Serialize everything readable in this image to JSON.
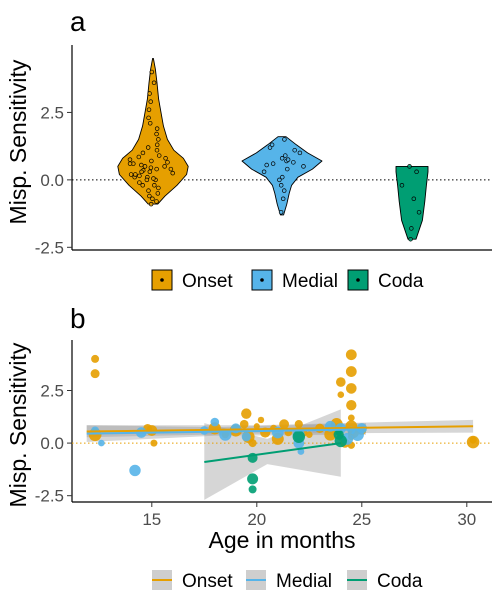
{
  "chart_data": [
    {
      "panel_label": "a",
      "type": "violin",
      "ylabel": "Misp. Sensitivity",
      "ylim": [
        -2.6,
        5.0
      ],
      "yticks": [
        "-2.5",
        "0.0",
        "2.5"
      ],
      "yticks_values": [
        -2.5,
        0.0,
        2.5
      ],
      "reference_line": 0,
      "categories": [
        "Onset",
        "Medial",
        "Coda"
      ],
      "colors": [
        "#E69F00",
        "#56B4E9",
        "#009E73"
      ],
      "series": [
        {
          "name": "Onset",
          "violin_profile": [
            [
              -0.9,
              0.06
            ],
            [
              -0.6,
              0.15
            ],
            [
              -0.2,
              0.3
            ],
            [
              0.2,
              0.42
            ],
            [
              0.5,
              0.44
            ],
            [
              0.8,
              0.38
            ],
            [
              1.1,
              0.26
            ],
            [
              1.5,
              0.18
            ],
            [
              2.0,
              0.13
            ],
            [
              2.5,
              0.1
            ],
            [
              3.0,
              0.07
            ],
            [
              3.6,
              0.05
            ],
            [
              4.1,
              0.03
            ],
            [
              4.5,
              0.005
            ]
          ],
          "points": [
            -0.9,
            -0.8,
            -0.7,
            -0.6,
            -0.5,
            -0.4,
            -0.3,
            -0.2,
            -0.1,
            0.0,
            0.05,
            0.1,
            0.15,
            0.2,
            0.25,
            0.3,
            0.35,
            0.4,
            0.45,
            0.5,
            0.55,
            0.6,
            0.65,
            0.7,
            0.75,
            0.8,
            0.85,
            0.9,
            1.0,
            1.1,
            1.2,
            1.3,
            1.5,
            1.7,
            1.9,
            2.1,
            2.3,
            2.6,
            2.9,
            3.2,
            3.6,
            4.0,
            0.1,
            0.3,
            0.5,
            0.2,
            0.4,
            0.6,
            0.0,
            -0.2
          ]
        },
        {
          "name": "Medial",
          "violin_profile": [
            [
              -1.3,
              0.02
            ],
            [
              -0.9,
              0.06
            ],
            [
              -0.5,
              0.09
            ],
            [
              -0.2,
              0.12
            ],
            [
              0.1,
              0.2
            ],
            [
              0.4,
              0.38
            ],
            [
              0.7,
              0.5
            ],
            [
              1.0,
              0.32
            ],
            [
              1.3,
              0.18
            ],
            [
              1.6,
              0.05
            ]
          ],
          "points": [
            -1.2,
            -0.7,
            -0.4,
            -0.2,
            0.0,
            0.1,
            0.3,
            0.4,
            0.5,
            0.6,
            0.7,
            0.75,
            0.8,
            0.9,
            1.0,
            1.1,
            1.2,
            1.3,
            1.5,
            0.55,
            0.65
          ]
        },
        {
          "name": "Coda",
          "violin_profile": [
            [
              -2.2,
              0.05
            ],
            [
              -1.5,
              0.13
            ],
            [
              -0.8,
              0.16
            ],
            [
              -0.2,
              0.18
            ],
            [
              0.3,
              0.2
            ],
            [
              0.5,
              0.2
            ]
          ],
          "points": [
            -2.2,
            -1.8,
            -1.2,
            -0.7,
            -0.2,
            0.3,
            0.5
          ]
        }
      ],
      "legend": {
        "position": "bottom",
        "entries": [
          "Onset",
          "Medial",
          "Coda"
        ]
      }
    },
    {
      "panel_label": "b",
      "type": "scatter",
      "xlabel": "Age in months",
      "ylabel": "Misp. Sensitivity",
      "xlim": [
        11.2,
        31.2
      ],
      "ylim": [
        -2.8,
        4.9
      ],
      "xticks": [
        "15",
        "20",
        "25",
        "30"
      ],
      "xticks_values": [
        15,
        20,
        25,
        30
      ],
      "yticks": [
        "-2.5",
        "0.0",
        "2.5"
      ],
      "yticks_values": [
        -2.5,
        0.0,
        2.5
      ],
      "reference_line": 0,
      "series": [
        {
          "name": "Onset",
          "color": "#E69F00",
          "points": [
            [
              12.3,
              4.0
            ],
            [
              12.3,
              3.3
            ],
            [
              12.3,
              0.4
            ],
            [
              14.8,
              0.7
            ],
            [
              15.0,
              0.6
            ],
            [
              15.1,
              0.0
            ],
            [
              18.0,
              0.7
            ],
            [
              18.5,
              0.4
            ],
            [
              19.0,
              0.6
            ],
            [
              19.4,
              0.9
            ],
            [
              19.5,
              1.4
            ],
            [
              19.6,
              0.3
            ],
            [
              19.8,
              0.0
            ],
            [
              20.0,
              0.8
            ],
            [
              20.2,
              1.1
            ],
            [
              20.4,
              0.5
            ],
            [
              20.8,
              0.7
            ],
            [
              21.0,
              0.2
            ],
            [
              21.3,
              0.9
            ],
            [
              21.5,
              0.5
            ],
            [
              22.0,
              0.9
            ],
            [
              22.2,
              0.5
            ],
            [
              22.5,
              0.4
            ],
            [
              23.0,
              0.7
            ],
            [
              23.5,
              0.4
            ],
            [
              23.8,
              0.9
            ],
            [
              24.0,
              2.9
            ],
            [
              24.0,
              2.3
            ],
            [
              24.0,
              0.3
            ],
            [
              24.2,
              0.0
            ],
            [
              24.5,
              4.2
            ],
            [
              24.5,
              3.4
            ],
            [
              24.5,
              2.6
            ],
            [
              24.5,
              1.8
            ],
            [
              24.5,
              1.2
            ],
            [
              24.5,
              0.8
            ],
            [
              24.5,
              0.3
            ],
            [
              24.5,
              -0.1
            ],
            [
              24.6,
              0.5
            ],
            [
              25.0,
              0.6
            ],
            [
              30.3,
              0.15
            ],
            [
              30.3,
              0.05
            ]
          ]
        },
        {
          "name": "Medial",
          "color": "#56B4E9",
          "points": [
            [
              12.3,
              0.6
            ],
            [
              12.6,
              0.0
            ],
            [
              14.2,
              -1.3
            ],
            [
              14.5,
              0.5
            ],
            [
              17.5,
              0.6
            ],
            [
              18.0,
              1.0
            ],
            [
              18.5,
              0.4
            ],
            [
              19.0,
              0.7
            ],
            [
              19.5,
              0.3
            ],
            [
              21.0,
              0.5
            ],
            [
              22.0,
              0.4
            ],
            [
              22.0,
              0.0
            ],
            [
              22.1,
              -0.4
            ],
            [
              23.5,
              0.8
            ],
            [
              24.0,
              0.7
            ],
            [
              24.3,
              0.2
            ],
            [
              24.5,
              0.6
            ],
            [
              24.8,
              0.4
            ],
            [
              25.0,
              0.7
            ]
          ]
        },
        {
          "name": "Coda",
          "color": "#009E73",
          "points": [
            [
              19.8,
              -2.2
            ],
            [
              19.8,
              -1.7
            ],
            [
              19.8,
              -0.7
            ],
            [
              22.0,
              0.3
            ],
            [
              23.9,
              0.5
            ],
            [
              23.9,
              0.4
            ],
            [
              24.0,
              0.1
            ]
          ]
        }
      ],
      "fits": [
        {
          "name": "Onset",
          "x": [
            11.9,
            30.3
          ],
          "y": [
            0.55,
            0.8
          ],
          "band": [
            [
              11.9,
              0.28,
              0.85
            ],
            [
              20.0,
              0.45,
              0.85
            ],
            [
              30.3,
              0.5,
              1.1
            ]
          ]
        },
        {
          "name": "Medial",
          "x": [
            11.9,
            25.2
          ],
          "y": [
            0.45,
            0.65
          ],
          "band": [
            [
              11.9,
              0.05,
              0.85
            ],
            [
              18.0,
              0.35,
              0.75
            ],
            [
              25.2,
              0.4,
              0.95
            ]
          ]
        },
        {
          "name": "Coda",
          "x": [
            17.5,
            24.0
          ],
          "y": [
            -0.9,
            0.0
          ],
          "band": [
            [
              17.5,
              -2.7,
              0.95
            ],
            [
              20.5,
              -1.0,
              0.2
            ],
            [
              24.0,
              -1.6,
              1.6
            ]
          ]
        }
      ],
      "legend": {
        "position": "bottom",
        "entries": [
          "Onset",
          "Medial",
          "Coda"
        ]
      }
    }
  ]
}
